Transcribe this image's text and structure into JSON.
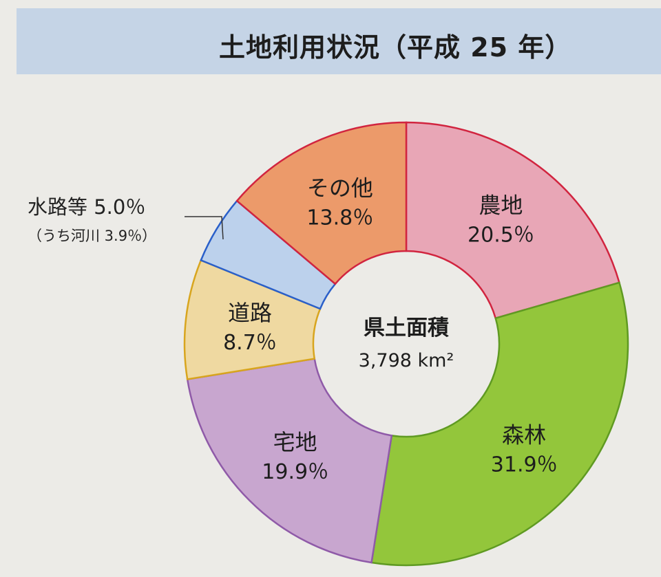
{
  "title": "土地利用状況（平成 25 年）",
  "chart_data": {
    "type": "donut",
    "title": "土地利用状況（平成 25 年）",
    "center_label": "県土面積",
    "center_value": "3,798 km²",
    "slices": [
      {
        "name": "農地",
        "value": 20.5,
        "label": "20.5％",
        "fill": "#e8a6b6",
        "stroke": "#d1243f"
      },
      {
        "name": "森林",
        "value": 31.9,
        "label": "31.9％",
        "fill": "#93c63b",
        "stroke": "#5f9a22"
      },
      {
        "name": "宅地",
        "value": 19.9,
        "label": "19.9％",
        "fill": "#c8a6cf",
        "stroke": "#8f5aa8"
      },
      {
        "name": "道路",
        "value": 8.7,
        "label": "8.7％",
        "fill": "#efd9a1",
        "stroke": "#d8a51e"
      },
      {
        "name": "水路等",
        "value": 5.0,
        "label": "5.0％",
        "fill": "#bcd1ec",
        "stroke": "#2a5fc9"
      },
      {
        "name": "その他",
        "value": 13.8,
        "label": "13.8％",
        "fill": "#ec9a6a",
        "stroke": "#d1243f"
      }
    ],
    "callout": {
      "main": "水路等 5.0％",
      "sub": "（うち河川 3.9％）"
    },
    "legend": "none",
    "grid": false
  }
}
